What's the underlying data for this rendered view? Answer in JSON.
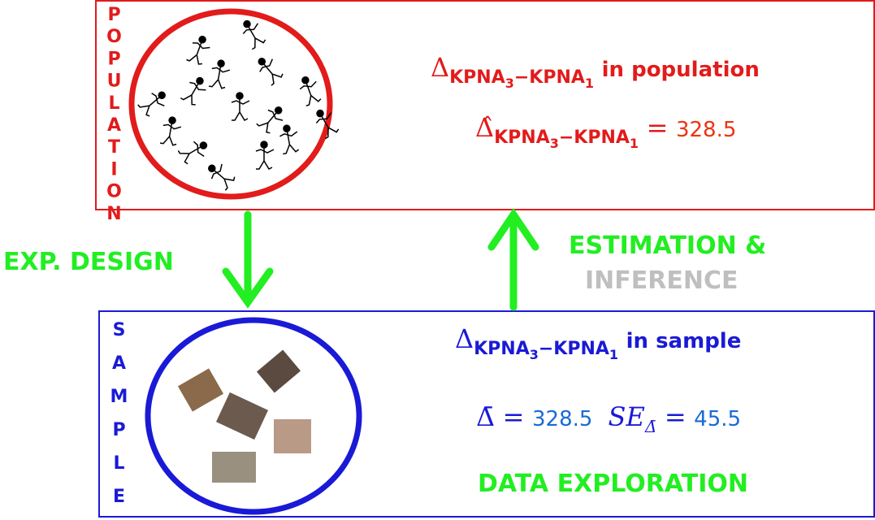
{
  "contrast": {
    "base": "KPNA",
    "i": "3",
    "minus": "−KPNA",
    "j": "1"
  },
  "population": {
    "label": "POPULATION",
    "symbol": "Δ",
    "text": "in population",
    "estimate": {
      "symbol": "Δ̂",
      "equals": "=",
      "value": 328.5
    }
  },
  "design": {
    "label": "EXP. DESIGN"
  },
  "estimation": {
    "label": "ESTIMATION &",
    "sublabel": "INFERENCE"
  },
  "sample": {
    "label": "SAMPLE",
    "symbol": "Δ",
    "text": "in sample",
    "mean": {
      "symbol": "Δ̄",
      "equals": "=",
      "value": 328.5
    },
    "se": {
      "symbol": "SE",
      "sub": "Δ̄",
      "equals": "=",
      "value": 45.5
    },
    "footer": "DATA EXPLORATION"
  }
}
